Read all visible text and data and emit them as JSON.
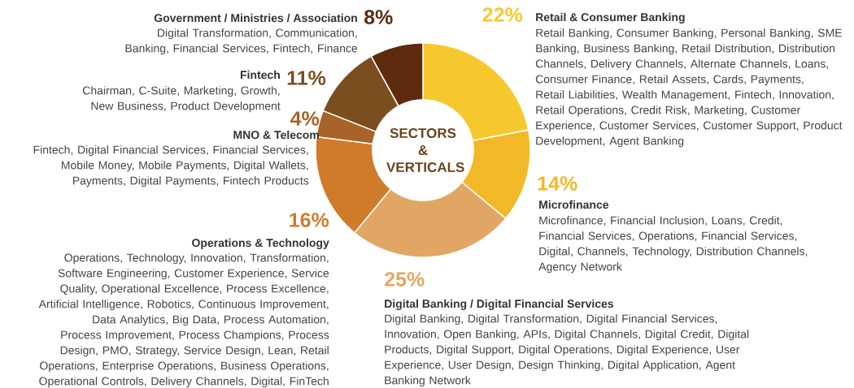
{
  "chart_data": {
    "type": "donut",
    "title": "SECTORS & VERTICALS",
    "categories": [
      "Retail & Consumer Banking",
      "Microfinance",
      "Digital Banking / Digital Financial Services",
      "Operations & Technology",
      "MNO & Telecom",
      "Fintech",
      "Government / Ministries / Association"
    ],
    "values": [
      22,
      14,
      25,
      16,
      4,
      11,
      8
    ],
    "value_labels": [
      "22%",
      "14%",
      "25%",
      "16%",
      "4%",
      "11%",
      "8%"
    ],
    "colors": [
      "#f5c92e",
      "#f3b827",
      "#e2a664",
      "#d07b2a",
      "#a86428",
      "#7a4e1e",
      "#5e2b0f"
    ],
    "annotations": [
      "Retail Banking, Consumer Banking, Personal Banking, SME Banking, Business Banking, Retail Distribution, Distribution Channels, Delivery Channels, Alternate Channels, Loans, Consumer Finance, Retail Assets, Cards, Payments, Retail Liabilities, Wealth Management, Fintech, Innovation, Retail Operations, Credit Risk, Marketing, Customer Experience, Customer Services, Customer Support, Product Development, Agent Banking",
      "Microfinance, Financial Inclusion, Loans, Credit, Financial Services, Operations, Financial Services, Digital, Channels, Technology, Distribution Channels, Agency Network",
      "Digital Banking, Digital Transformation, Digital Financial Services, Innovation, Open Banking, APIs, Digital Channels, Digital Credit, Digital Products, Digital Support, Digital Operations, Digital Experience, User Experience, User Design, Design Thinking, Digital Application, Agent Banking Network",
      "Operations, Technology, Innovation, Transformation, Software Engineering, Customer Experience, Service Quality, Operational Excellence, Process Excellence, Artificial Intelligence, Robotics, Continuous Improvement, Data Analytics, Big Data, Process Automation, Process Improvement, Process Champions, Process Design, PMO, Strategy, Service Design, Lean, Retail Operations, Enterprise Operations, Business Operations, Operational Controls, Delivery Channels, Digital, FinTech",
      "Fintech, Digital Financial Services, Financial Services, Mobile Money, Mobile Payments, Digital Wallets, Payments, Digital Payments, Fintech Products",
      "Chairman, C-Suite, Marketing, Growth, New Business, Product Development",
      "Digital Transformation, Communication, Banking, Financial Services, Fintech, Finance"
    ]
  }
}
